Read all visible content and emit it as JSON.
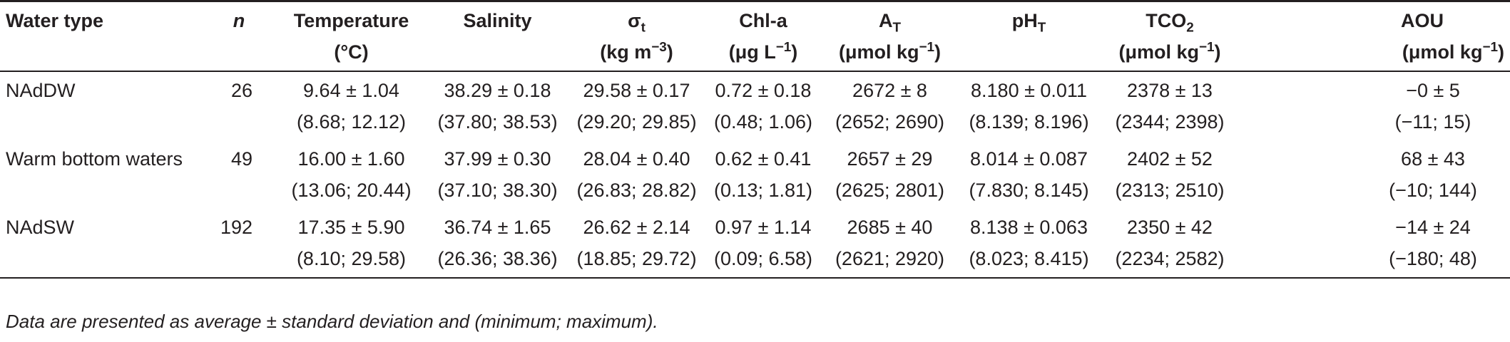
{
  "table": {
    "headers": [
      {
        "line1": "Water type",
        "line2": ""
      },
      {
        "line1": "n",
        "line2": ""
      },
      {
        "line1": "Temperature",
        "line2": "(°C)"
      },
      {
        "line1": "Salinity",
        "line2": ""
      },
      {
        "line1": "σ",
        "line1_sub": "t",
        "line2_pre": "(kg m",
        "line2_sup": "−3",
        "line2_post": ")"
      },
      {
        "line1": "Chl-a",
        "line2_pre": "(μg L",
        "line2_sup": "−1",
        "line2_post": ")"
      },
      {
        "line1": "A",
        "line1_sub": "T",
        "line2_pre": "(μmol kg",
        "line2_sup": "−1",
        "line2_post": ")"
      },
      {
        "line1": "pH",
        "line1_sub": "T",
        "line2": ""
      },
      {
        "line1": "TCO",
        "line1_sub": "2",
        "line2_pre": "(μmol kg",
        "line2_sup": "−1",
        "line2_post": ")"
      },
      {
        "line1": "AOU",
        "line2_pre": "(μmol kg",
        "line2_sup": "−1",
        "line2_post": ")"
      }
    ],
    "rows": [
      {
        "water_type": "NAdDW",
        "n": "26",
        "temperature": {
          "mean": "9.64 ± 1.04",
          "range": "(8.68; 12.12)"
        },
        "salinity": {
          "mean": "38.29 ± 0.18",
          "range": "(37.80; 38.53)"
        },
        "sigma_t": {
          "mean": "29.58 ± 0.17",
          "range": "(29.20; 29.85)"
        },
        "chl_a": {
          "mean": "0.72 ± 0.18",
          "range": "(0.48; 1.06)"
        },
        "at": {
          "mean": "2672 ± 8",
          "range": "(2652; 2690)"
        },
        "pht": {
          "mean": "8.180 ± 0.011",
          "range": "(8.139; 8.196)"
        },
        "tco2": {
          "mean": "2378 ± 13",
          "range": "(2344; 2398)"
        },
        "aou": {
          "mean": "−0 ± 5",
          "range": "(−11; 15)"
        }
      },
      {
        "water_type": "Warm bottom waters",
        "n": "49",
        "temperature": {
          "mean": "16.00 ± 1.60",
          "range": "(13.06; 20.44)"
        },
        "salinity": {
          "mean": "37.99 ± 0.30",
          "range": "(37.10; 38.30)"
        },
        "sigma_t": {
          "mean": "28.04 ± 0.40",
          "range": "(26.83; 28.82)"
        },
        "chl_a": {
          "mean": "0.62 ± 0.41",
          "range": "(0.13; 1.81)"
        },
        "at": {
          "mean": "2657 ± 29",
          "range": "(2625; 2801)"
        },
        "pht": {
          "mean": "8.014 ± 0.087",
          "range": "(7.830; 8.145)"
        },
        "tco2": {
          "mean": "2402 ± 52",
          "range": "(2313; 2510)"
        },
        "aou": {
          "mean": "68 ± 43",
          "range": "(−10; 144)"
        }
      },
      {
        "water_type": "NAdSW",
        "n": "192",
        "temperature": {
          "mean": "17.35 ± 5.90",
          "range": "(8.10; 29.58)"
        },
        "salinity": {
          "mean": "36.74 ± 1.65",
          "range": "(26.36; 38.36)"
        },
        "sigma_t": {
          "mean": "26.62 ± 2.14",
          "range": "(18.85; 29.72)"
        },
        "chl_a": {
          "mean": "0.97 ± 1.14",
          "range": "(0.09; 6.58)"
        },
        "at": {
          "mean": "2685 ± 40",
          "range": "(2621; 2920)"
        },
        "pht": {
          "mean": "8.138 ± 0.063",
          "range": "(8.023; 8.415)"
        },
        "tco2": {
          "mean": "2350 ± 42",
          "range": "(2234; 2582)"
        },
        "aou": {
          "mean": "−14 ± 24",
          "range": "(−180; 48)"
        }
      }
    ],
    "footnote": "Data are presented as average ± standard deviation and (minimum; maximum)."
  }
}
